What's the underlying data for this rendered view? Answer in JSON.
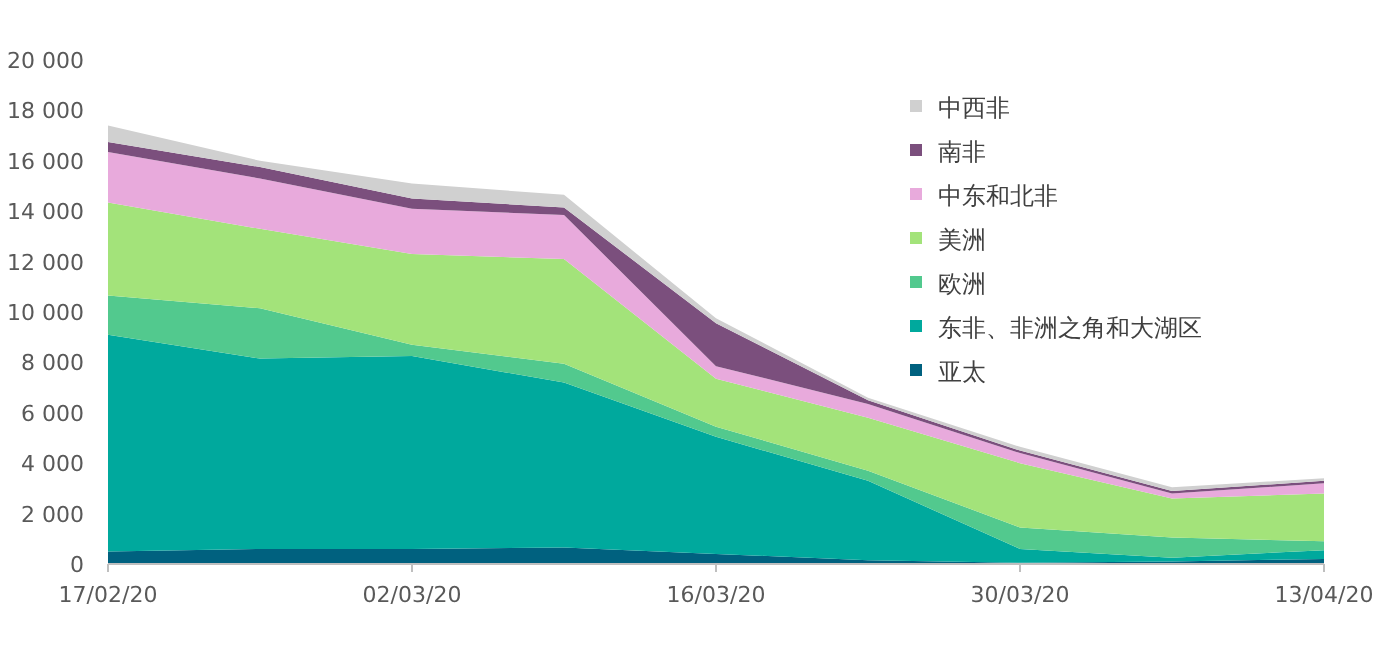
{
  "chart_data": {
    "type": "area",
    "stacked": true,
    "categories": [
      "17/02/20",
      null,
      "02/03/20",
      null,
      "16/03/20",
      null,
      "30/03/20",
      null,
      "13/04/20"
    ],
    "ylim": [
      0,
      20000
    ],
    "yticks": [
      0,
      {
        "value": 2000,
        "label": "2 000"
      },
      {
        "value": 4000,
        "label": "4 000"
      },
      {
        "value": 6000,
        "label": "6 000"
      },
      {
        "value": 8000,
        "label": "8 000"
      },
      {
        "value": 10000,
        "label": "10 000"
      },
      {
        "value": 12000,
        "label": "12 000"
      },
      {
        "value": 14000,
        "label": "14 000"
      },
      {
        "value": 16000,
        "label": "16 000"
      },
      {
        "value": 18000,
        "label": "18 000"
      },
      {
        "value": 20000,
        "label": "20 000"
      }
    ],
    "legend": "top right",
    "grid": false,
    "series": [
      {
        "name": "亚太",
        "color": "#00617f",
        "values": [
          500,
          600,
          600,
          650,
          400,
          150,
          50,
          100,
          200
        ]
      },
      {
        "name": "东非、非洲之角和大湖区",
        "color": "#00a99d",
        "values": [
          8600,
          7550,
          7650,
          6550,
          4650,
          3150,
          550,
          150,
          350
        ]
      },
      {
        "name": "欧洲",
        "color": "#52c98e",
        "values": [
          1550,
          2000,
          450,
          750,
          400,
          400,
          850,
          800,
          350
        ]
      },
      {
        "name": "美洲",
        "color": "#a3e37a",
        "values": [
          3700,
          3150,
          3600,
          4150,
          1900,
          2100,
          2550,
          1550,
          1900
        ]
      },
      {
        "name": "中东和北非",
        "color": "#e8aadc",
        "values": [
          2000,
          2000,
          1800,
          1750,
          500,
          550,
          400,
          200,
          400
        ]
      },
      {
        "name": "南非",
        "color": "#7b4f7d",
        "values": [
          400,
          450,
          400,
          300,
          1700,
          150,
          100,
          100,
          100
        ]
      },
      {
        "name": "中西非",
        "color": "#d0d0d0",
        "values": [
          650,
          250,
          600,
          500,
          200,
          100,
          150,
          150,
          100
        ]
      }
    ]
  }
}
